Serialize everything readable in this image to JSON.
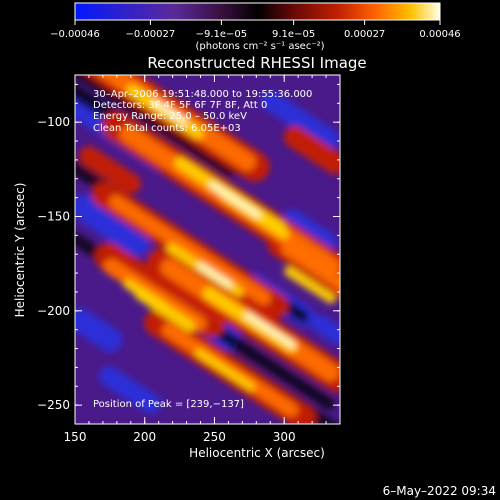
{
  "chart_data": {
    "type": "heatmap",
    "title": "Reconstructed RHESSI Image",
    "xlabel": "Heliocentric X (arcsec)",
    "ylabel": "Heliocentric Y (arcsec)",
    "xlim": [
      150,
      340
    ],
    "ylim": [
      -260,
      -75
    ],
    "x_ticks": [
      150,
      200,
      250,
      300
    ],
    "y_ticks": [
      -100,
      -150,
      -200,
      -250
    ],
    "x_tick_labels": [
      "150",
      "200",
      "250",
      "300"
    ],
    "y_tick_labels": [
      "−100",
      "−150",
      "−200",
      "−250"
    ],
    "colorbar": {
      "range": [
        -0.00046,
        0.00046
      ],
      "tick_values": [
        -0.00046,
        -0.00027,
        -9.1e-05,
        9.1e-05,
        0.00027,
        0.00046
      ],
      "tick_labels": [
        "−0.00046",
        "−0.00027",
        "−9.1e−05",
        "9.1e−05",
        "0.00027",
        "0.00046"
      ],
      "unit_label": "(photons cm⁻² s⁻¹ asec⁻²)",
      "colors": [
        "#0000ff",
        "#4a1aa0",
        "#7a2a8a",
        "#000000",
        "#a01010",
        "#e03000",
        "#ff8000",
        "#ffd000",
        "#ffffe0"
      ]
    },
    "annotations": [
      "30–Apr–2006 19:51:48.000 to 19:55:36.000",
      "Detectors: 3F 4F 5F 6F 7F 8F, Att 0",
      "Energy Range: 25.0 – 50.0 keV",
      "Clean     Total counts: 6.05E+03"
    ],
    "peak_label": "Position of Peak = [239,−137]",
    "peak": {
      "x": 239,
      "y": -137
    },
    "footer_date": "6–May–2022 09:34"
  }
}
